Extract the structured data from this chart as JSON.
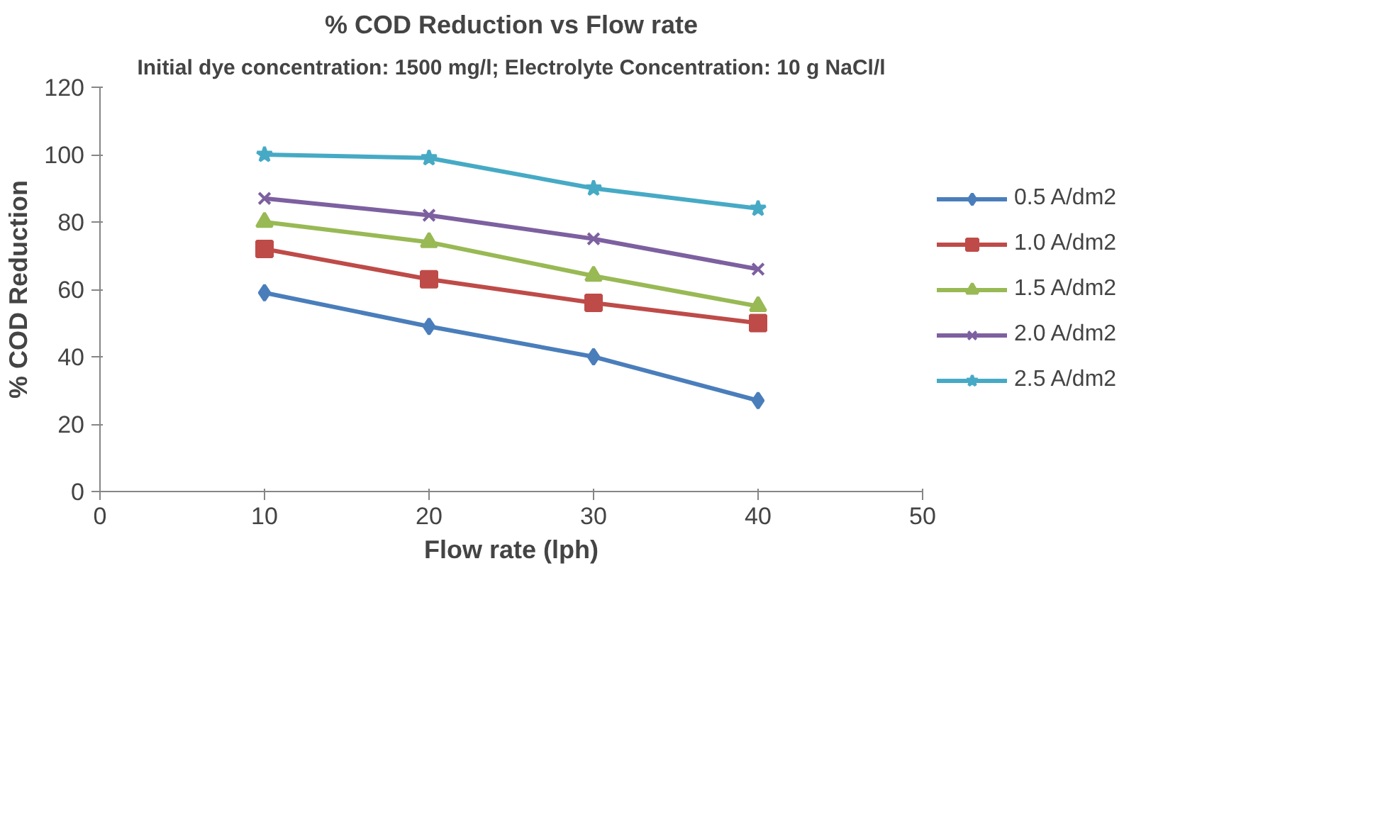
{
  "chart_data": {
    "type": "line",
    "title": "% COD Reduction vs Flow rate",
    "subtitle": "Initial dye concentration: 1500 mg/l; Electrolyte Concentration: 10 g NaCl/l",
    "xlabel": "Flow rate (lph)",
    "ylabel": "% COD Reduction",
    "x": [
      10,
      20,
      30,
      40
    ],
    "series": [
      {
        "name": "0.5 A/dm2",
        "color": "#4a7ebb",
        "marker": "diamond",
        "values": [
          59,
          49,
          40,
          27
        ]
      },
      {
        "name": "1.0 A/dm2",
        "color": "#be4b48",
        "marker": "square",
        "values": [
          72,
          63,
          56,
          50
        ]
      },
      {
        "name": "1.5 A/dm2",
        "color": "#98b954",
        "marker": "triangle",
        "values": [
          80,
          74,
          64,
          55
        ]
      },
      {
        "name": "2.0 A/dm2",
        "color": "#7d60a0",
        "marker": "cross",
        "values": [
          87,
          82,
          75,
          66
        ]
      },
      {
        "name": "2.5 A/dm2",
        "color": "#46aac5",
        "marker": "star",
        "values": [
          100,
          99,
          90,
          84
        ]
      }
    ],
    "xlim": [
      0,
      50
    ],
    "xticks": [
      0,
      10,
      20,
      30,
      40,
      50
    ],
    "ylim": [
      0,
      120
    ],
    "yticks": [
      0,
      20,
      40,
      60,
      80,
      100,
      120
    ],
    "grid": false,
    "legend": "right",
    "line_style": "solid"
  }
}
